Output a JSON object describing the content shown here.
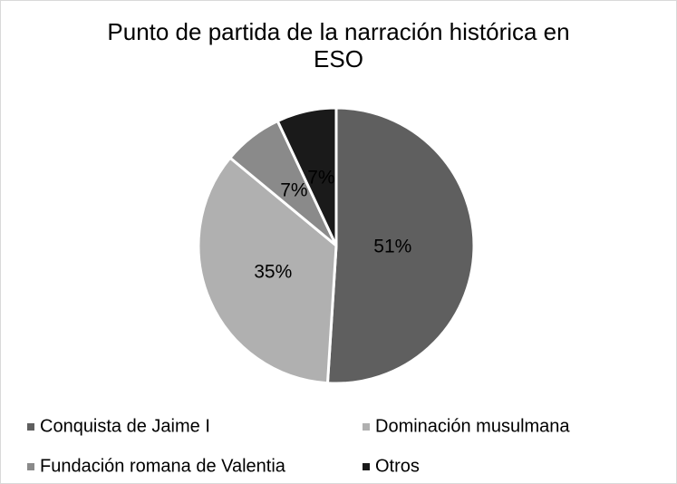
{
  "chart_data": {
    "type": "pie",
    "title": "Punto de partida de la narración histórica en ESO",
    "categories": [
      "Conquista de Jaime I",
      "Dominación musulmana",
      "Fundación romana de Valentia",
      "Otros"
    ],
    "values": [
      51,
      35,
      7,
      7
    ],
    "value_labels": [
      "51%",
      "35%",
      "7%",
      "7%"
    ],
    "colors": [
      "#5f5f5f",
      "#b0b0b0",
      "#8a8a8a",
      "#1a1a1a"
    ],
    "legend": "bottom"
  }
}
